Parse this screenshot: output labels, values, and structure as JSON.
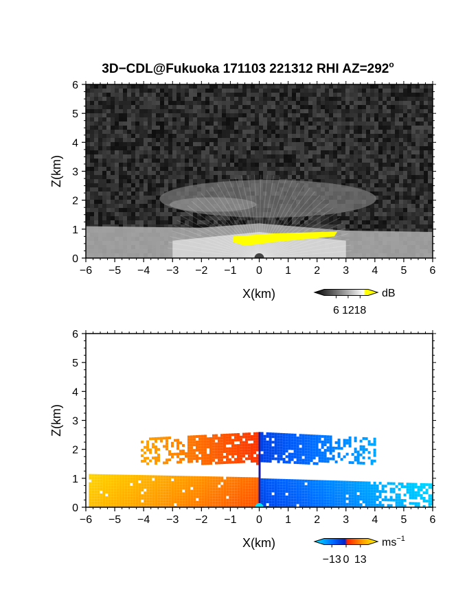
{
  "figure": {
    "title_main": "3D−CDL@Fukuoka 171103 221312 RHI AZ=292",
    "title_sup": "o"
  },
  "chart_data": [
    {
      "type": "heatmap",
      "quantity": "signal intensity",
      "xlabel": "X(km)",
      "ylabel": "Z(km)",
      "xlim": [
        -6,
        6
      ],
      "ylim": [
        0,
        6
      ],
      "xticks": [
        "−6",
        "−5",
        "−4",
        "−3",
        "−2",
        "−1",
        "0",
        "1",
        "2",
        "3",
        "4",
        "5",
        "6"
      ],
      "yticks": [
        "0",
        "1",
        "2",
        "3",
        "4",
        "5",
        "6"
      ],
      "colorbar": {
        "unit": "dB",
        "ticks": [
          "6",
          "12",
          "18"
        ],
        "tick_values": [
          6,
          12,
          18
        ],
        "range": [
          0,
          22
        ],
        "colors": [
          "#000000",
          "#ffffff",
          "#ffff00"
        ]
      },
      "features": [
        {
          "name": "bright fan near radar",
          "x_range": [
            -6,
            6
          ],
          "z_range": [
            0,
            1.2
          ]
        },
        {
          "name": "upper layer",
          "x_range": [
            -3.5,
            4
          ],
          "z_range": [
            1.5,
            2.8
          ]
        },
        {
          "name": "saturated band (>18 dB)",
          "x_range": [
            -1,
            2.7
          ],
          "z_range": [
            0.4,
            0.9
          ]
        }
      ]
    },
    {
      "type": "heatmap",
      "quantity": "radial velocity",
      "xlabel": "X(km)",
      "ylabel": "Z(km)",
      "xlim": [
        -6,
        6
      ],
      "ylim": [
        0,
        6
      ],
      "xticks": [
        "−6",
        "−5",
        "−4",
        "−3",
        "−2",
        "−1",
        "0",
        "1",
        "2",
        "3",
        "4",
        "5",
        "6"
      ],
      "yticks": [
        "0",
        "1",
        "2",
        "3",
        "4",
        "5",
        "6"
      ],
      "colorbar": {
        "unit": "ms",
        "unit_sup": "−1",
        "ticks": [
          "−13",
          "0",
          "13"
        ],
        "tick_values": [
          -13,
          0,
          13
        ],
        "range": [
          -20,
          20
        ],
        "colors": [
          "#00e5ff",
          "#0033ff",
          "#ff2200",
          "#ffff00"
        ]
      },
      "regions": [
        {
          "name": "lower layer west",
          "x_range": [
            -6,
            0
          ],
          "z_range": [
            0,
            1.1
          ],
          "velocity": 9
        },
        {
          "name": "lower layer east",
          "x_range": [
            0,
            6
          ],
          "z_range": [
            0,
            0.9
          ],
          "velocity": -10
        },
        {
          "name": "upper layer west",
          "x_range": [
            -4,
            0
          ],
          "z_range": [
            1.6,
            2.6
          ],
          "velocity": 6
        },
        {
          "name": "upper layer east",
          "x_range": [
            0,
            4
          ],
          "z_range": [
            1.6,
            2.6
          ],
          "velocity": -7
        }
      ]
    }
  ]
}
